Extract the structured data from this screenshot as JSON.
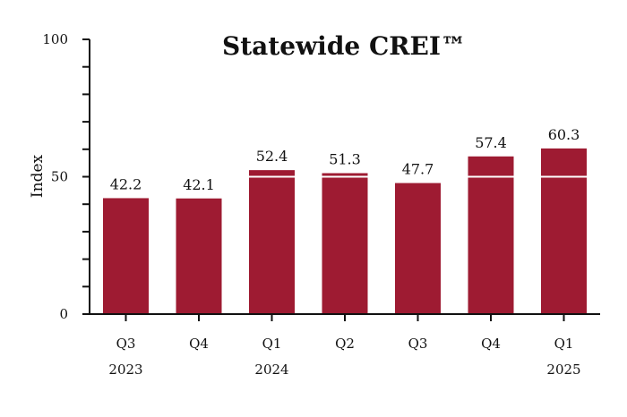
{
  "chart_data": {
    "type": "bar",
    "title": "Statewide CREI™",
    "xlabel": "",
    "ylabel": "Index",
    "ylim": [
      0,
      100
    ],
    "yticks": [
      "0",
      "50",
      "100"
    ],
    "categories": [
      "Q3",
      "Q4",
      "Q1",
      "Q2",
      "Q3",
      "Q4",
      "Q1"
    ],
    "category_groups": [
      {
        "label": "2023",
        "start": 0,
        "end": 1
      },
      {
        "label": "2024",
        "start": 2,
        "end": 5
      },
      {
        "label": "2025",
        "start": 6,
        "end": 6
      }
    ],
    "values": [
      42.2,
      42.1,
      52.4,
      51.3,
      47.7,
      57.4,
      60.3
    ],
    "value_labels": [
      "42.2",
      "42.1",
      "52.4",
      "51.3",
      "47.7",
      "57.4",
      "60.3"
    ],
    "reference_line": 50,
    "grid": false,
    "colors": {
      "bar": "#9e1b32",
      "reference_line": "#ffffff",
      "axis": "#111111"
    }
  }
}
